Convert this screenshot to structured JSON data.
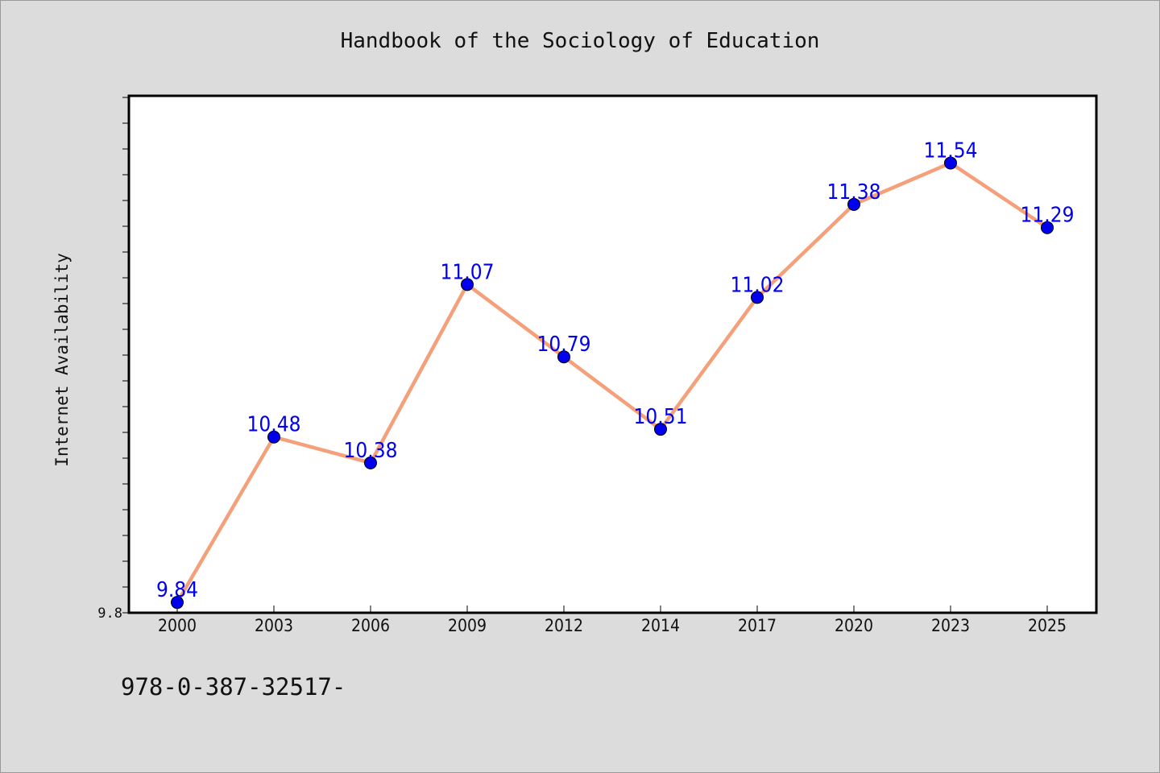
{
  "chart_data": {
    "type": "line",
    "title": "Handbook of the Sociology of Education",
    "xlabel": "",
    "ylabel": "Internet Availability",
    "categories": [
      "2000",
      "2003",
      "2006",
      "2009",
      "2012",
      "2014",
      "2017",
      "2020",
      "2023",
      "2025"
    ],
    "series": [
      {
        "values": [
          9.84,
          10.48,
          10.38,
          11.07,
          10.79,
          10.51,
          11.02,
          11.38,
          11.54,
          11.29
        ],
        "labels": [
          "9.84",
          "10.48",
          "10.38",
          "11.07",
          "10.79",
          "10.51",
          "11.02",
          "11.38",
          "11.54",
          "11.29"
        ],
        "color": "#f4a07a",
        "marker_color": "#0000ee"
      }
    ],
    "ylim": [
      9.8,
      11.8
    ],
    "yticks_labeled": [
      "9.8"
    ],
    "grid": false,
    "legend": "none"
  },
  "footer": {
    "text": "978-0-387-32517-"
  },
  "colors": {
    "background": "#dcdcdc",
    "plot_background": "#ffffff",
    "line": "#f4a07a",
    "marker": "#0000ee",
    "data_label": "#0000ee"
  }
}
